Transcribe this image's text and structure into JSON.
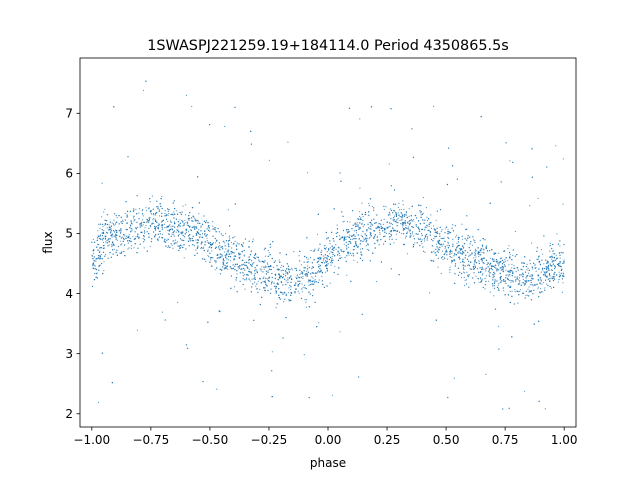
{
  "chart_data": {
    "type": "scatter",
    "title": "1SWASPJ221259.19+184114.0 Period 4350865.5s",
    "xlabel": "phase",
    "ylabel": "flux",
    "xlim": [
      -1.05,
      1.05
    ],
    "ylim": [
      1.78,
      7.92
    ],
    "x_ticks": [
      -1.0,
      -0.75,
      -0.5,
      -0.25,
      0.0,
      0.25,
      0.5,
      0.75,
      1.0
    ],
    "x_tick_labels": [
      "−1.00",
      "−0.75",
      "−0.50",
      "−0.25",
      "0.00",
      "0.25",
      "0.50",
      "0.75",
      "1.00"
    ],
    "y_ticks": [
      2,
      3,
      4,
      5,
      6,
      7
    ],
    "y_tick_labels": [
      "2",
      "3",
      "4",
      "5",
      "6",
      "7"
    ],
    "grid": false,
    "legend": "none",
    "marker_color": "#1f77b4",
    "series": [
      {
        "values": "dense phase-folded light curve; approx. mean flux envelope below (phase, flux)",
        "envelope": {
          "x": [
            -1.0,
            -0.95,
            -0.9,
            -0.85,
            -0.8,
            -0.75,
            -0.7,
            -0.65,
            -0.6,
            -0.55,
            -0.5,
            -0.45,
            -0.4,
            -0.35,
            -0.3,
            -0.25,
            -0.2,
            -0.15,
            -0.1,
            -0.05,
            0.0,
            0.05,
            0.1,
            0.15,
            0.2,
            0.25,
            0.3,
            0.35,
            0.4,
            0.45,
            0.5,
            0.55,
            0.6,
            0.65,
            0.7,
            0.75,
            0.8,
            0.85,
            0.9,
            0.95,
            1.0
          ],
          "y": [
            4.5,
            4.9,
            5.0,
            5.0,
            5.1,
            5.2,
            5.2,
            5.1,
            5.05,
            5.0,
            4.85,
            4.7,
            4.55,
            4.45,
            4.4,
            4.35,
            4.25,
            4.2,
            4.25,
            4.4,
            4.6,
            4.8,
            4.95,
            5.0,
            5.1,
            5.15,
            5.2,
            5.15,
            5.05,
            4.95,
            4.8,
            4.7,
            4.6,
            4.5,
            4.4,
            4.35,
            4.3,
            4.25,
            4.3,
            4.45,
            4.5
          ]
        }
      }
    ]
  }
}
